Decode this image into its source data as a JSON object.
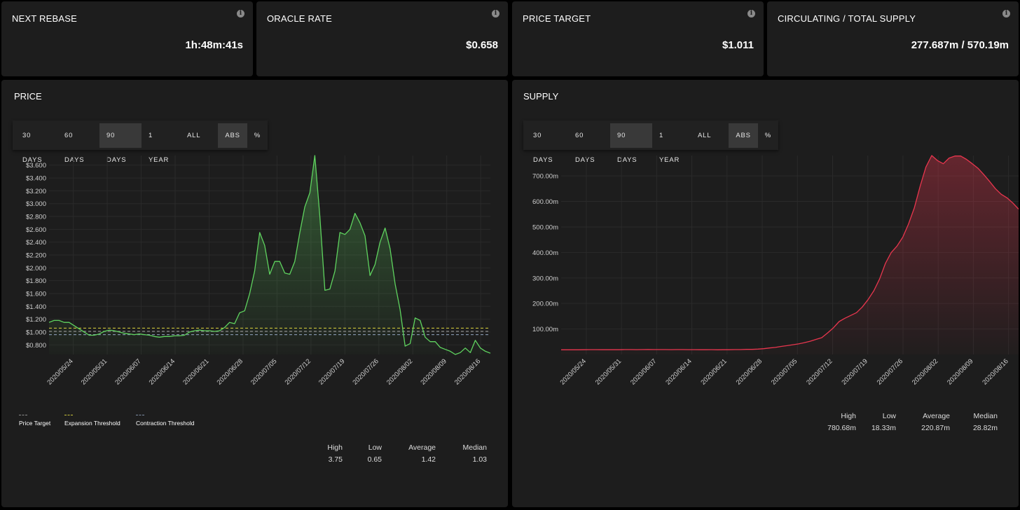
{
  "stats": [
    {
      "title": "NEXT REBASE",
      "value": "1h:48m:41s"
    },
    {
      "title": "ORACLE RATE",
      "value": "$0.658"
    },
    {
      "title": "PRICE TARGET",
      "value": "$1.011"
    },
    {
      "title": "CIRCULATING / TOTAL SUPPLY",
      "value": "277.687m / 570.19m"
    }
  ],
  "range_buttons": [
    "30 DAYS",
    "60 DAYS",
    "90 DAYS",
    "1 YEAR",
    "ALL"
  ],
  "mode_buttons": [
    "ABS",
    "%"
  ],
  "price_panel": {
    "title": "PRICE",
    "active_range": "90 DAYS",
    "active_mode": "ABS",
    "legend": [
      {
        "label": "Price Target",
        "color": "#8c8c8c"
      },
      {
        "label": "Expansion Threshold",
        "color": "#c9c13a"
      },
      {
        "label": "Contraction Threshold",
        "color": "#7f8fa6"
      }
    ],
    "summary": [
      {
        "label": "High",
        "value": "3.75"
      },
      {
        "label": "Low",
        "value": "0.65"
      },
      {
        "label": "Average",
        "value": "1.42"
      },
      {
        "label": "Median",
        "value": "1.03"
      }
    ]
  },
  "supply_panel": {
    "title": "SUPPLY",
    "active_range": "90 DAYS",
    "active_mode": "ABS",
    "summary": [
      {
        "label": "High",
        "value": "780.68m"
      },
      {
        "label": "Low",
        "value": "18.33m"
      },
      {
        "label": "Average",
        "value": "220.87m"
      },
      {
        "label": "Median",
        "value": "28.82m"
      }
    ]
  },
  "chart_data": [
    {
      "type": "line",
      "title": "PRICE",
      "line_color": "#5fd35f",
      "x_ticks": [
        "2020/05/24",
        "2020/05/31",
        "2020/06/07",
        "2020/06/14",
        "2020/06/21",
        "2020/06/28",
        "2020/07/05",
        "2020/07/12",
        "2020/07/19",
        "2020/07/26",
        "2020/08/02",
        "2020/08/09",
        "2020/08/16"
      ],
      "y_ticks": [
        "$0.800",
        "$1.000",
        "$1.200",
        "$1.400",
        "$1.600",
        "$1.800",
        "$2.000",
        "$2.200",
        "$2.400",
        "$2.600",
        "$2.800",
        "$3.000",
        "$3.200",
        "$3.400",
        "$3.600"
      ],
      "ylim": [
        0.65,
        3.75
      ],
      "x_start": "2020/05/19",
      "x_end": "2020/08/18",
      "reference_lines": [
        {
          "name": "Expansion Threshold",
          "value": 1.06,
          "color": "#c9c13a"
        },
        {
          "name": "Price Target",
          "value": 1.01,
          "color": "#8c8c8c"
        },
        {
          "name": "Contraction Threshold",
          "value": 0.96,
          "color": "#7f8fa6"
        }
      ],
      "series": [
        {
          "values": [
            1.15,
            1.18,
            1.18,
            1.15,
            1.15,
            1.1,
            1.05,
            1.0,
            0.95,
            0.95,
            0.97,
            1.01,
            1.03,
            1.02,
            1.0,
            0.98,
            0.97,
            0.96,
            0.97,
            0.96,
            0.95,
            0.93,
            0.92,
            0.93,
            0.93,
            0.94,
            0.94,
            0.95,
            1.0,
            1.02,
            1.03,
            1.02,
            1.02,
            1.01,
            1.02,
            1.07,
            1.15,
            1.13,
            1.3,
            1.33,
            1.6,
            1.95,
            2.55,
            2.35,
            1.9,
            2.1,
            2.1,
            1.92,
            1.9,
            2.1,
            2.55,
            2.95,
            3.17,
            3.75,
            2.8,
            1.65,
            1.67,
            1.95,
            2.55,
            2.52,
            2.6,
            2.85,
            2.7,
            2.5,
            1.88,
            2.05,
            2.4,
            2.62,
            2.3,
            1.75,
            1.35,
            0.78,
            0.82,
            1.22,
            1.18,
            0.92,
            0.85,
            0.85,
            0.76,
            0.73,
            0.7,
            0.65,
            0.68,
            0.75,
            0.68,
            0.87,
            0.75,
            0.7,
            0.67
          ]
        }
      ]
    },
    {
      "type": "area",
      "title": "SUPPLY",
      "line_color": "#e8364e",
      "x_ticks": [
        "2020/05/24",
        "2020/05/31",
        "2020/06/07",
        "2020/06/14",
        "2020/06/21",
        "2020/06/28",
        "2020/07/05",
        "2020/07/12",
        "2020/07/19",
        "2020/07/26",
        "2020/08/02",
        "2020/08/09",
        "2020/08/16"
      ],
      "y_ticks": [
        "100.00m",
        "200.00m",
        "300.00m",
        "400.00m",
        "500.00m",
        "600.00m",
        "700.00m"
      ],
      "ylim": [
        0,
        780
      ],
      "x_start": "2020/05/19",
      "x_end": "2020/08/18",
      "series": [
        {
          "values": [
            18.33,
            18.5,
            18.5,
            18.4,
            18.8,
            19,
            19,
            18.6,
            18.7,
            18.9,
            18.8,
            19.2,
            19.2,
            18.9,
            19.1,
            19.4,
            19.2,
            19.2,
            19.3,
            19,
            19.1,
            19.3,
            18.9,
            18.9,
            18.7,
            18.7,
            19,
            18.5,
            18.7,
            18.7,
            19.2,
            19.3,
            20,
            20,
            21.2,
            22.8,
            25.6,
            27.8,
            31.5,
            34.5,
            38.1,
            41.5,
            46.4,
            52,
            59,
            66,
            84,
            104,
            129,
            142,
            153,
            164,
            186,
            215,
            250,
            296,
            357,
            400,
            425,
            460,
            512,
            575,
            660,
            735,
            780,
            760,
            748,
            770,
            778,
            778,
            765,
            748,
            730,
            705,
            678,
            650,
            628,
            614,
            594,
            570
          ]
        }
      ]
    }
  ]
}
